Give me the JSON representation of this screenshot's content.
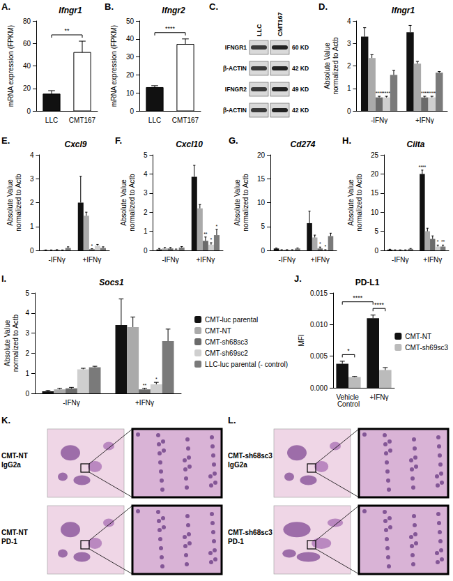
{
  "chart_data": [
    {
      "type": "bar",
      "panel_label": "A.",
      "title": "Ifngr1",
      "ylabel": "mRNA expression (FPKM)",
      "categories": [
        "LLC",
        "CMT167"
      ],
      "values": [
        15,
        52
      ],
      "errors": [
        3,
        10
      ],
      "colors": [
        "#111111",
        "#ffffff"
      ],
      "ylim": [
        0,
        80
      ],
      "yticks": [
        0,
        20,
        40,
        60,
        80
      ],
      "grid": false,
      "comparisons": [
        {
          "from": [
            "LLC"
          ],
          "to": [
            "CMT167"
          ],
          "text": "**"
        }
      ]
    },
    {
      "type": "bar",
      "panel_label": "B.",
      "title": "Ifngr2",
      "ylabel": "mRNA expression (FPKM)",
      "categories": [
        "LLC",
        "CMT167"
      ],
      "values": [
        13,
        37
      ],
      "errors": [
        1,
        3
      ],
      "colors": [
        "#111111",
        "#ffffff"
      ],
      "ylim": [
        0,
        50
      ],
      "yticks": [
        0,
        10,
        20,
        30,
        40,
        50
      ],
      "grid": false,
      "comparisons": [
        {
          "from": [
            "LLC"
          ],
          "to": [
            "CMT167"
          ],
          "text": "****"
        }
      ]
    },
    {
      "type": "bar",
      "panel_label": "D.",
      "title": "Ifngr1",
      "ylabel": "Absolute Value\nnormalized to Actb",
      "categories": [
        "-IFNγ",
        "+IFNγ"
      ],
      "ylim": [
        0,
        4
      ],
      "yticks": [
        0,
        1,
        2,
        3,
        4
      ],
      "grid": false,
      "series": [
        {
          "name": "CMT-luc parental",
          "color": "#111111",
          "values": [
            3.3,
            3.5
          ],
          "errors": [
            0.4,
            0.3
          ],
          "significance": [
            null,
            null
          ]
        },
        {
          "name": "CMT-NT",
          "color": "#aaaaaa",
          "values": [
            2.35,
            2.1
          ],
          "errors": [
            0.15,
            0.1
          ],
          "significance": [
            null,
            null
          ]
        },
        {
          "name": "CMT-sh68sc3",
          "color": "#6b6b6b",
          "values": [
            0.6,
            0.6
          ],
          "errors": [
            0.05,
            0.05
          ],
          "significance": [
            "****",
            "****"
          ]
        },
        {
          "name": "CMT-sh69sc2",
          "color": "#cfcfcf",
          "values": [
            0.6,
            0.6
          ],
          "errors": [
            0.05,
            0.05
          ],
          "significance": [
            "****",
            "****"
          ]
        },
        {
          "name": "LLC-luc parental (- control)",
          "color": "#7a7a7a",
          "values": [
            1.6,
            1.7
          ],
          "errors": [
            0.2,
            0.05
          ],
          "significance": [
            null,
            null
          ]
        }
      ]
    },
    {
      "type": "bar",
      "panel_label": "E.",
      "title": "Cxcl9",
      "ylabel": "Absolute Value\nnormalized to Actb",
      "categories": [
        "-IFNγ",
        "+IFNγ"
      ],
      "ylim": [
        0,
        4
      ],
      "yticks": [
        0,
        1,
        2,
        3,
        4
      ],
      "grid": false,
      "series": [
        {
          "name": "CMT-luc parental",
          "color": "#111111",
          "values": [
            0.01,
            2.0
          ],
          "errors": [
            0.01,
            1.1
          ],
          "significance": [
            null,
            null
          ]
        },
        {
          "name": "CMT-NT",
          "color": "#aaaaaa",
          "values": [
            0.01,
            1.45
          ],
          "errors": [
            0.01,
            0.15
          ],
          "significance": [
            null,
            null
          ]
        },
        {
          "name": "CMT-sh68sc3",
          "color": "#6b6b6b",
          "values": [
            0.02,
            0.05
          ],
          "errors": [
            0.01,
            0.02
          ],
          "significance": [
            null,
            "*"
          ]
        },
        {
          "name": "CMT-sh69sc2",
          "color": "#cfcfcf",
          "values": [
            0.01,
            0.2
          ],
          "errors": [
            0.01,
            0.05
          ],
          "significance": [
            null,
            null
          ]
        },
        {
          "name": "LLC-luc parental (- control)",
          "color": "#7a7a7a",
          "values": [
            0.1,
            0.1
          ],
          "errors": [
            0.05,
            0.05
          ],
          "significance": [
            null,
            null
          ]
        }
      ]
    },
    {
      "type": "bar",
      "panel_label": "F.",
      "title": "Cxcl10",
      "ylabel": "Absolute Value\nnormalized to Actb",
      "categories": [
        "-IFNγ",
        "+IFNγ"
      ],
      "ylim": [
        0,
        5
      ],
      "yticks": [
        0,
        1,
        2,
        3,
        4,
        5
      ],
      "grid": false,
      "series": [
        {
          "name": "CMT-luc parental",
          "color": "#111111",
          "values": [
            0.05,
            3.85
          ],
          "errors": [
            0.05,
            0.6
          ],
          "significance": [
            null,
            null
          ]
        },
        {
          "name": "CMT-NT",
          "color": "#aaaaaa",
          "values": [
            0.1,
            2.2
          ],
          "errors": [
            0.05,
            0.2
          ],
          "significance": [
            null,
            null
          ]
        },
        {
          "name": "CMT-sh68sc3",
          "color": "#6b6b6b",
          "values": [
            0.1,
            0.5
          ],
          "errors": [
            0.05,
            0.2
          ],
          "significance": [
            null,
            "**"
          ]
        },
        {
          "name": "CMT-sh69sc2",
          "color": "#cfcfcf",
          "values": [
            0.05,
            0.3
          ],
          "errors": [
            0.02,
            0.1
          ],
          "significance": [
            null,
            "*"
          ]
        },
        {
          "name": "LLC-luc parental (- control)",
          "color": "#7a7a7a",
          "values": [
            0.15,
            0.8
          ],
          "errors": [
            0.05,
            0.3
          ],
          "significance": [
            null,
            "*"
          ]
        }
      ]
    },
    {
      "type": "bar",
      "panel_label": "G.",
      "title": "Cd274",
      "ylabel": "Absolute Value\nnormalized to Actb",
      "categories": [
        "-IFNγ",
        "+IFNγ"
      ],
      "ylim": [
        0,
        20
      ],
      "yticks": [
        0,
        5,
        10,
        15,
        20
      ],
      "grid": false,
      "series": [
        {
          "name": "CMT-luc parental",
          "color": "#111111",
          "values": [
            0.4,
            5.7
          ],
          "errors": [
            0.1,
            2.5
          ],
          "significance": [
            null,
            null
          ]
        },
        {
          "name": "CMT-NT",
          "color": "#aaaaaa",
          "values": [
            0.1,
            2.7
          ],
          "errors": [
            0.05,
            0.5
          ],
          "significance": [
            null,
            null
          ]
        },
        {
          "name": "CMT-sh68sc3",
          "color": "#6b6b6b",
          "values": [
            0.1,
            0.4
          ],
          "errors": [
            0.05,
            0.3
          ],
          "significance": [
            null,
            "*"
          ]
        },
        {
          "name": "CMT-sh69sc2",
          "color": "#cfcfcf",
          "values": [
            0.1,
            0.1
          ],
          "errors": [
            0.05,
            0.05
          ],
          "significance": [
            null,
            "*"
          ]
        },
        {
          "name": "LLC-luc parental (- control)",
          "color": "#7a7a7a",
          "values": [
            0.4,
            3.0
          ],
          "errors": [
            0.1,
            0.6
          ],
          "significance": [
            null,
            null
          ]
        }
      ]
    },
    {
      "type": "bar",
      "panel_label": "H.",
      "title": "Ciita",
      "ylabel": "Absolute Value\nnormalized to Actb",
      "categories": [
        "-IFNγ",
        "+IFNγ"
      ],
      "ylim": [
        0,
        25
      ],
      "yticks": [
        0,
        5,
        10,
        15,
        20,
        25
      ],
      "grid": false,
      "series": [
        {
          "name": "CMT-luc parental",
          "color": "#111111",
          "values": [
            0.2,
            20
          ],
          "errors": [
            0.1,
            1.0
          ],
          "significance": [
            null,
            "****"
          ]
        },
        {
          "name": "CMT-NT",
          "color": "#aaaaaa",
          "values": [
            0.1,
            5.0
          ],
          "errors": [
            0.05,
            0.8
          ],
          "significance": [
            null,
            null
          ]
        },
        {
          "name": "CMT-sh68sc3",
          "color": "#6b6b6b",
          "values": [
            0.1,
            3.0
          ],
          "errors": [
            0.05,
            0.8
          ],
          "significance": [
            null,
            null
          ]
        },
        {
          "name": "CMT-sh69sc2",
          "color": "#cfcfcf",
          "values": [
            0.1,
            1.0
          ],
          "errors": [
            0.05,
            0.4
          ],
          "significance": [
            null,
            "*"
          ]
        },
        {
          "name": "LLC-luc parental (- control)",
          "color": "#7a7a7a",
          "values": [
            0.4,
            1.0
          ],
          "errors": [
            0.1,
            0.4
          ],
          "significance": [
            null,
            "**"
          ]
        }
      ]
    },
    {
      "type": "bar",
      "panel_label": "I.",
      "title": "Socs1",
      "ylabel": "Absolute Value\nnormalized to Actb",
      "categories": [
        "-IFNγ",
        "+IFNγ"
      ],
      "ylim": [
        0,
        5
      ],
      "yticks": [
        0,
        1,
        2,
        3,
        4,
        5
      ],
      "grid": false,
      "legend": "right",
      "series": [
        {
          "name": "CMT-luc parental",
          "color": "#111111",
          "values": [
            0.1,
            3.4
          ],
          "errors": [
            0.05,
            1.3
          ],
          "significance": [
            null,
            null
          ]
        },
        {
          "name": "CMT-NT",
          "color": "#aaaaaa",
          "values": [
            0.2,
            3.3
          ],
          "errors": [
            0.05,
            0.5
          ],
          "significance": [
            null,
            null
          ]
        },
        {
          "name": "CMT-sh68sc3",
          "color": "#6b6b6b",
          "values": [
            0.25,
            0.2
          ],
          "errors": [
            0.05,
            0.05
          ],
          "significance": [
            null,
            "**"
          ]
        },
        {
          "name": "CMT-sh69sc2",
          "color": "#cfcfcf",
          "values": [
            1.2,
            0.45
          ],
          "errors": [
            0.05,
            0.1
          ],
          "significance": [
            null,
            "*"
          ]
        },
        {
          "name": "LLC-luc parental (- control)",
          "color": "#7a7a7a",
          "values": [
            1.3,
            2.6
          ],
          "errors": [
            0.05,
            0.6
          ],
          "significance": [
            null,
            null
          ]
        }
      ]
    },
    {
      "type": "bar",
      "panel_label": "J.",
      "title": "PD-L1",
      "ylabel": "MFI",
      "categories": [
        "Vehicle Control",
        "+IFNγ"
      ],
      "ylim": [
        0,
        0.015
      ],
      "yticks": [
        {
          "value": 0,
          "label": "0.000"
        },
        {
          "value": 0.005,
          "label": "0.005"
        },
        {
          "value": 0.01,
          "label": "0.010"
        },
        {
          "value": 0.015,
          "label": "0.015"
        }
      ],
      "grid": false,
      "legend": "right",
      "series": [
        {
          "name": "CMT-NT",
          "color": "#111111",
          "values": [
            0.0038,
            0.011
          ],
          "errors": [
            0.0004,
            0.0005
          ],
          "significance": [
            null,
            null
          ]
        },
        {
          "name": "CMT-sh69sc3",
          "color": "#bbbbbb",
          "values": [
            0.0017,
            0.0028
          ],
          "errors": [
            0.0001,
            0.0004
          ],
          "significance": [
            null,
            null
          ]
        }
      ],
      "comparisons": [
        {
          "from": [
            "Vehicle Control",
            "CMT-NT"
          ],
          "to": [
            "Vehicle Control",
            "CMT-sh69sc3"
          ],
          "text": "*"
        },
        {
          "from": [
            "+IFNγ",
            "CMT-NT"
          ],
          "to": [
            "+IFNγ",
            "CMT-sh69sc3"
          ],
          "text": "****"
        },
        {
          "from": [
            "Vehicle Control",
            "CMT-NT"
          ],
          "to": [
            "+IFNγ",
            "CMT-NT"
          ],
          "text": "****"
        }
      ]
    }
  ],
  "blot": {
    "panel_label": "C.",
    "lanes": [
      "LLC",
      "CMT167"
    ],
    "rows": [
      {
        "protein": "IFNGR1",
        "size": "60 KD"
      },
      {
        "protein": "β-ACTIN",
        "size": "42 KD"
      },
      {
        "protein": "IFNGR2",
        "size": "49 KD"
      },
      {
        "protein": "β-ACTIN",
        "size": "42 KD"
      }
    ]
  },
  "histology": [
    {
      "panel_label": "K.",
      "rows": [
        "CMT-NT\nIgG2a",
        "CMT-NT\nPD-1"
      ]
    },
    {
      "panel_label": "L.",
      "rows": [
        "CMT-sh68sc3\nIgG2a",
        "CMT-sh68sc3\nPD-1"
      ]
    }
  ]
}
